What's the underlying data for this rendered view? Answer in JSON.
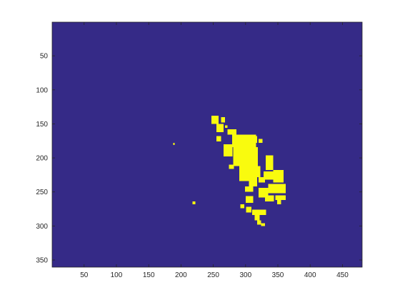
{
  "chart_data": {
    "type": "heatmap",
    "title": "",
    "xlabel": "",
    "ylabel": "",
    "colormap": {
      "background": "#352A87",
      "foreground": "#F9FB0E"
    },
    "xlim": [
      0.5,
      480.5
    ],
    "ylim": [
      0.5,
      360.5
    ],
    "y_direction": "reverse",
    "x_ticks": [
      50,
      100,
      150,
      200,
      250,
      300,
      350,
      400,
      450
    ],
    "y_ticks": [
      50,
      100,
      150,
      200,
      250,
      300,
      350
    ],
    "grid": false,
    "foreground_regions": [
      {
        "x": [
          247,
          258
        ],
        "y": [
          138,
          150
        ]
      },
      {
        "x": [
          262,
          268
        ],
        "y": [
          140,
          148
        ]
      },
      {
        "x": [
          255,
          266
        ],
        "y": [
          150,
          162
        ]
      },
      {
        "x": [
          268,
          272
        ],
        "y": [
          152,
          156
        ]
      },
      {
        "x": [
          272,
          286
        ],
        "y": [
          158,
          166
        ]
      },
      {
        "x": [
          279,
          316
        ],
        "y": [
          166,
          184
        ]
      },
      {
        "x": [
          310,
          318
        ],
        "y": [
          168,
          178
        ]
      },
      {
        "x": [
          320,
          326
        ],
        "y": [
          172,
          178
        ]
      },
      {
        "x": [
          255,
          262
        ],
        "y": [
          168,
          176
        ]
      },
      {
        "x": [
          266,
          280
        ],
        "y": [
          180,
          198
        ]
      },
      {
        "x": [
          281,
          319
        ],
        "y": [
          184,
          212
        ]
      },
      {
        "x": [
          290,
          318
        ],
        "y": [
          212,
          234
        ]
      },
      {
        "x": [
          318,
          323
        ],
        "y": [
          212,
          228
        ]
      },
      {
        "x": [
          305,
          318
        ],
        "y": [
          234,
          242
        ]
      },
      {
        "x": [
          299,
          312
        ],
        "y": [
          242,
          250
        ]
      },
      {
        "x": [
          266,
          272
        ],
        "y": [
          184,
          192
        ]
      },
      {
        "x": [
          274,
          282
        ],
        "y": [
          210,
          216
        ]
      },
      {
        "x": [
          331,
          343
        ],
        "y": [
          196,
          218
        ]
      },
      {
        "x": [
          328,
          355
        ],
        "y": [
          220,
          232
        ]
      },
      {
        "x": [
          343,
          359
        ],
        "y": [
          218,
          236
        ]
      },
      {
        "x": [
          320,
          330
        ],
        "y": [
          228,
          236
        ]
      },
      {
        "x": [
          335,
          362
        ],
        "y": [
          238,
          252
        ]
      },
      {
        "x": [
          320,
          335
        ],
        "y": [
          244,
          258
        ]
      },
      {
        "x": [
          330,
          344
        ],
        "y": [
          255,
          264
        ]
      },
      {
        "x": [
          346,
          362
        ],
        "y": [
          255,
          262
        ]
      },
      {
        "x": [
          349,
          355
        ],
        "y": [
          262,
          268
        ]
      },
      {
        "x": [
          300,
          312
        ],
        "y": [
          256,
          266
        ]
      },
      {
        "x": [
          292,
          298
        ],
        "y": [
          268,
          274
        ]
      },
      {
        "x": [
          301,
          309
        ],
        "y": [
          272,
          280
        ]
      },
      {
        "x": [
          310,
          332
        ],
        "y": [
          276,
          284
        ]
      },
      {
        "x": [
          314,
          322
        ],
        "y": [
          284,
          292
        ]
      },
      {
        "x": [
          318,
          324
        ],
        "y": [
          292,
          298
        ]
      },
      {
        "x": [
          324,
          330
        ],
        "y": [
          296,
          300
        ]
      },
      {
        "x": [
          188,
          190
        ],
        "y": [
          178,
          181
        ]
      },
      {
        "x": [
          218,
          222
        ],
        "y": [
          264,
          268
        ]
      }
    ]
  }
}
